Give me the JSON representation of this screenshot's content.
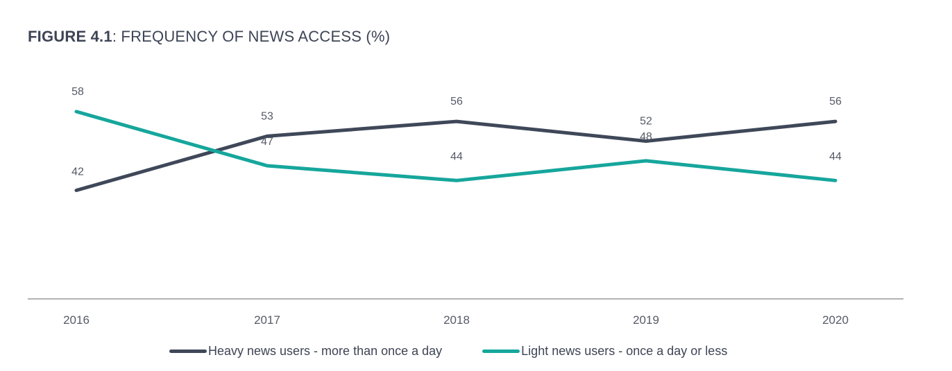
{
  "title": {
    "lead": "FIGURE 4.1",
    "rest": ": FREQUENCY OF NEWS ACCESS (%)"
  },
  "colors": {
    "heavy": "#3f4859",
    "light": "#16a69c",
    "axis": "#9a9a9a",
    "text": "#555a66"
  },
  "chart_data": {
    "type": "line",
    "title": "FIGURE 4.1: FREQUENCY OF NEWS ACCESS (%)",
    "categories": [
      "2016",
      "2017",
      "2018",
      "2019",
      "2020"
    ],
    "series": [
      {
        "name": "Heavy news users - more than once a day",
        "values": [
          42,
          53,
          56,
          52,
          56
        ]
      },
      {
        "name": "Light news users - once a day or less",
        "values": [
          58,
          47,
          44,
          48,
          44
        ]
      }
    ],
    "data_labels": true,
    "legend_position": "bottom",
    "grid": false,
    "xlabel": "",
    "ylabel": ""
  }
}
